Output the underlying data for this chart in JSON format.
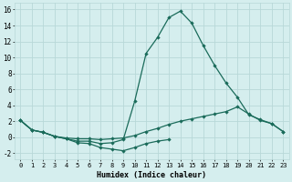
{
  "xlabel": "Humidex (Indice chaleur)",
  "bg_color": "#d5eeee",
  "grid_color": "#b8d8d8",
  "line_color": "#1a6b5a",
  "xlim": [
    -0.5,
    23.5
  ],
  "ylim": [
    -2.8,
    16.8
  ],
  "xticks": [
    0,
    1,
    2,
    3,
    4,
    5,
    6,
    7,
    8,
    9,
    10,
    11,
    12,
    13,
    14,
    15,
    16,
    17,
    18,
    19,
    20,
    21,
    22,
    23
  ],
  "yticks": [
    -2,
    0,
    2,
    4,
    6,
    8,
    10,
    12,
    14,
    16
  ],
  "series_peak_x": [
    0,
    1,
    2,
    3,
    4,
    5,
    6,
    7,
    8,
    9,
    10,
    11,
    12,
    13,
    14,
    15,
    16,
    17,
    18,
    19,
    20,
    21,
    22,
    23
  ],
  "series_peak_y": [
    2.1,
    0.9,
    0.6,
    0.1,
    -0.2,
    -0.5,
    -0.5,
    -0.8,
    -0.7,
    -0.3,
    4.5,
    10.5,
    12.5,
    15.0,
    15.8,
    14.3,
    11.5,
    9.0,
    6.8,
    5.0,
    2.8,
    2.2,
    1.7,
    0.7
  ],
  "series_slope_x": [
    0,
    1,
    2,
    3,
    4,
    5,
    6,
    7,
    8,
    9,
    10,
    11,
    12,
    13,
    14,
    15,
    16,
    17,
    18,
    19,
    20,
    21,
    22,
    23
  ],
  "series_slope_y": [
    2.1,
    0.9,
    0.6,
    0.1,
    -0.1,
    -0.2,
    -0.2,
    -0.3,
    -0.2,
    -0.1,
    0.2,
    0.7,
    1.1,
    1.6,
    2.0,
    2.3,
    2.6,
    2.9,
    3.2,
    3.8,
    2.9,
    2.1,
    1.7,
    0.7
  ],
  "series_dip_x": [
    0,
    1,
    2,
    3,
    4,
    5,
    6,
    7,
    8,
    9,
    10,
    11,
    12,
    13
  ],
  "series_dip_y": [
    2.1,
    0.9,
    0.6,
    0.1,
    -0.2,
    -0.7,
    -0.8,
    -1.3,
    -1.5,
    -1.7,
    -1.3,
    -0.8,
    -0.5,
    -0.3
  ]
}
